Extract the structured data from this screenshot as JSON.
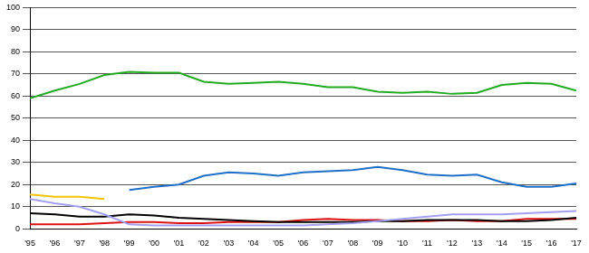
{
  "chart_data": {
    "type": "line",
    "categories": [
      "'95",
      "'96",
      "'97",
      "'98",
      "'99",
      "'00",
      "'01",
      "'02",
      "'03",
      "'04",
      "'05",
      "'06",
      "'07",
      "'08",
      "'09",
      "'10",
      "'11",
      "'12",
      "'13",
      "'14",
      "'15",
      "'16",
      "'17"
    ],
    "series": [
      {
        "color": "#22aa22",
        "values": [
          59,
          62.5,
          65.5,
          69.5,
          71,
          70.5,
          70.5,
          66.5,
          65.5,
          66,
          66.5,
          65.5,
          64,
          64,
          62,
          61.5,
          62,
          61,
          61.5,
          65,
          66,
          65.5,
          62.5
        ]
      },
      {
        "color": "#1f6fc6",
        "values": [
          null,
          null,
          null,
          null,
          17.5,
          19,
          20,
          24,
          25.5,
          25,
          24,
          25.5,
          26,
          26.5,
          28,
          26.5,
          24.5,
          24,
          24.5,
          21,
          19,
          19,
          20.5
        ]
      },
      {
        "color": "#f5c400",
        "values": [
          15.5,
          14.5,
          14.5,
          13.5,
          null,
          null,
          null,
          null,
          null,
          null,
          null,
          null,
          null,
          null,
          null,
          null,
          null,
          null,
          null,
          null,
          null,
          null,
          null
        ]
      },
      {
        "color": "#a4a0f0",
        "values": [
          13.5,
          11.5,
          10,
          6.5,
          2,
          1.5,
          1.5,
          1.5,
          1.5,
          1.5,
          1.5,
          1.5,
          2,
          2.5,
          3.5,
          4.5,
          5.5,
          6.5,
          6.5,
          6.5,
          7,
          7.5,
          8
        ]
      },
      {
        "color": "#000000",
        "values": [
          7,
          6.5,
          5.5,
          5.5,
          6.5,
          6,
          5,
          4.5,
          4,
          3.5,
          3,
          3,
          3,
          3,
          3.5,
          3.5,
          4,
          4,
          4,
          3.5,
          3.5,
          4,
          5
        ]
      },
      {
        "color": "#dd1111",
        "values": [
          2,
          2,
          2,
          2.5,
          3,
          3,
          2.5,
          2.5,
          3,
          3,
          3,
          4,
          4.5,
          4,
          4,
          3.5,
          3.5,
          4,
          3.5,
          3.5,
          4.5,
          4.5,
          4.5
        ]
      }
    ],
    "ylim": [
      0,
      100
    ],
    "yticks": [
      0,
      10,
      20,
      30,
      40,
      50,
      60,
      70,
      80,
      90,
      100
    ],
    "grid": true
  }
}
